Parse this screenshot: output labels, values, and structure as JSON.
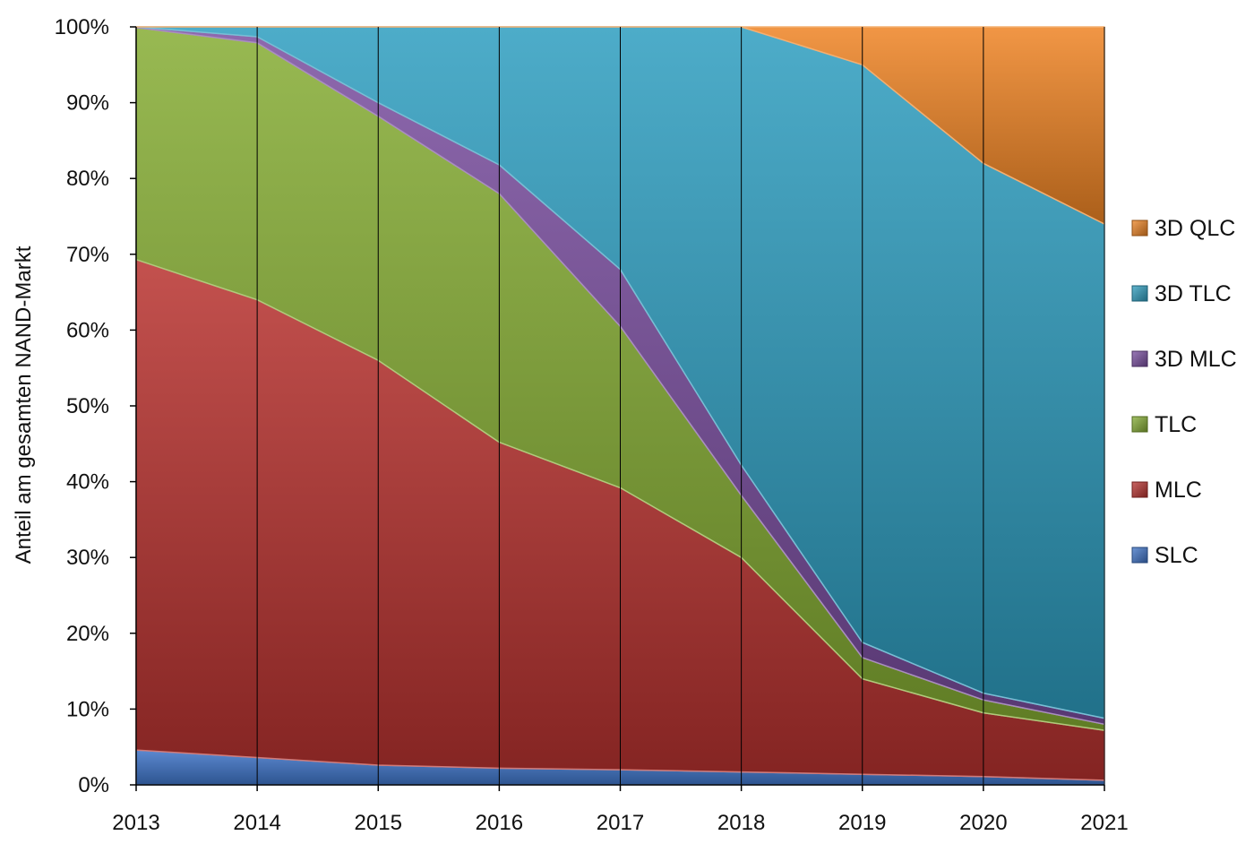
{
  "chart_data": {
    "type": "area",
    "stacked": true,
    "normalized_percent": true,
    "title": "",
    "xlabel": "",
    "ylabel": "Anteil am gesamten NAND-Markt",
    "x": [
      "2013",
      "2014",
      "2015",
      "2016",
      "2017",
      "2018",
      "2019",
      "2020",
      "2021"
    ],
    "ylim": [
      0,
      100
    ],
    "yticks": [
      "0%",
      "10%",
      "20%",
      "30%",
      "40%",
      "50%",
      "60%",
      "70%",
      "80%",
      "90%",
      "100%"
    ],
    "grid": "vertical lines at each year",
    "legend_position": "right",
    "series": [
      {
        "name": "SLC",
        "color": "#3f74c8",
        "values": [
          4.6,
          3.6,
          2.6,
          2.2,
          2.0,
          1.7,
          1.4,
          1.1,
          0.6
        ]
      },
      {
        "name": "MLC",
        "color": "#b8322f",
        "values": [
          64.7,
          60.4,
          53.4,
          43.0,
          37.2,
          28.3,
          12.6,
          8.4,
          6.6
        ]
      },
      {
        "name": "TLC",
        "color": "#86ad34",
        "values": [
          30.6,
          33.9,
          32.2,
          32.8,
          21.3,
          8.2,
          2.8,
          1.7,
          0.8
        ]
      },
      {
        "name": "3D MLC",
        "color": "#7a4ea0",
        "values": [
          0.1,
          0.8,
          1.8,
          3.8,
          7.5,
          4.0,
          2.0,
          0.9,
          0.8
        ]
      },
      {
        "name": "3D TLC",
        "color": "#2e9dbf",
        "values": [
          0.0,
          1.3,
          10.0,
          18.2,
          32.0,
          57.8,
          76.2,
          69.9,
          65.2
        ]
      },
      {
        "name": "3D QLC",
        "color": "#ee8424",
        "values": [
          0.0,
          0.0,
          0.0,
          0.0,
          0.0,
          0.0,
          5.0,
          18.0,
          26.0
        ]
      }
    ],
    "legend_order": [
      "3D QLC",
      "3D TLC",
      "3D MLC",
      "TLC",
      "MLC",
      "SLC"
    ]
  }
}
